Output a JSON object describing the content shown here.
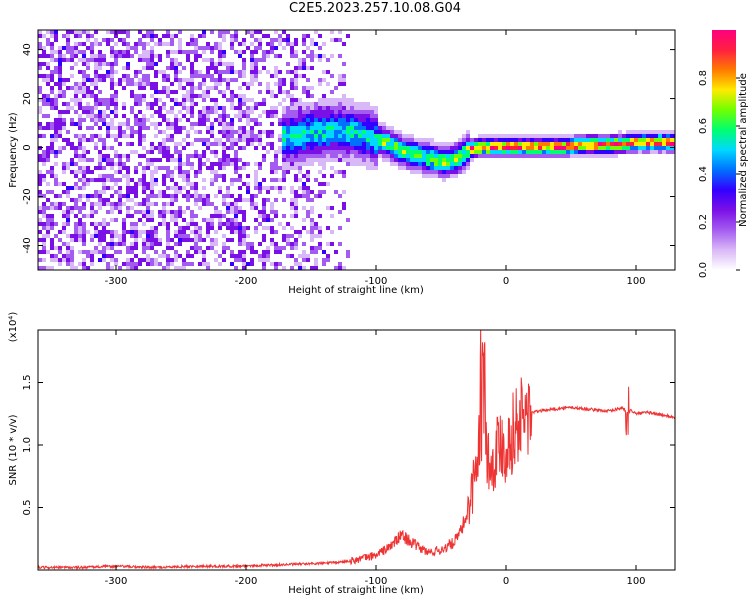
{
  "title": "C2E5.2023.257.10.08.G04",
  "chart_data": [
    {
      "type": "heatmap",
      "xlabel": "Height of straight line (km)",
      "ylabel": "Frequency (Hz)",
      "xlim": [
        -360,
        130
      ],
      "ylim": [
        -50,
        48
      ],
      "x_ticks": [
        -300,
        -200,
        -100,
        0,
        100
      ],
      "x_tick_labels": [
        "-300",
        "-200",
        "-100",
        "0",
        "100"
      ],
      "y_ticks": [
        -40,
        -20,
        0,
        20,
        40
      ],
      "y_tick_labels": [
        "-40",
        "-20",
        "0",
        "20",
        "40"
      ],
      "ridge": {
        "x": [
          -170,
          -150,
          -130,
          -110,
          -95,
          -80,
          -65,
          -50,
          -40,
          -30,
          -20,
          -10,
          0,
          20,
          40,
          60,
          80,
          100,
          130
        ],
        "frequency": [
          5,
          7,
          8,
          6,
          3,
          -1,
          -3,
          -5,
          -4,
          0,
          1,
          1,
          1,
          1,
          1,
          2,
          2,
          3,
          3
        ]
      },
      "colorbar": {
        "label": "Normalized spectral amplitude",
        "range": [
          0.0,
          1.0
        ],
        "ticks": [
          0.0,
          0.2,
          0.4,
          0.6,
          0.8
        ],
        "tick_labels": [
          "0.0",
          "0.2",
          "0.4",
          "0.6",
          "0.8"
        ]
      },
      "colormap": [
        "#ffffff",
        "#d9b8f7",
        "#a45cf0",
        "#7a10e6",
        "#3300ff",
        "#0070ff",
        "#00d8ff",
        "#00ff70",
        "#70ff00",
        "#ffea00",
        "#ff7a00",
        "#ff2040",
        "#ff0080"
      ],
      "grid": false
    },
    {
      "type": "line",
      "xlabel": "Height of straight line (km)",
      "ylabel": "SNR (10 * v/v)",
      "y_multiplier": "(x10⁴)",
      "xlim": [
        -360,
        130
      ],
      "ylim": [
        0,
        1.92
      ],
      "x_ticks": [
        -300,
        -200,
        -100,
        0,
        100
      ],
      "x_tick_labels": [
        "-300",
        "-200",
        "-100",
        "0",
        "100"
      ],
      "y_ticks": [
        0.5,
        1.0,
        1.5
      ],
      "y_tick_labels": [
        "0.5",
        "1.0",
        "1.5"
      ],
      "series": [
        {
          "color": "#ee3333",
          "x": [
            -360,
            -330,
            -300,
            -270,
            -240,
            -210,
            -180,
            -150,
            -130,
            -115,
            -100,
            -90,
            -80,
            -70,
            -60,
            -50,
            -40,
            -35,
            -30,
            -25,
            -22,
            -18,
            -15,
            -12,
            -8,
            -4,
            0,
            5,
            10,
            20,
            30,
            40,
            50,
            60,
            70,
            80,
            90,
            93,
            96,
            100,
            110,
            120,
            130
          ],
          "y": [
            0.02,
            0.02,
            0.03,
            0.02,
            0.03,
            0.03,
            0.04,
            0.05,
            0.06,
            0.08,
            0.12,
            0.18,
            0.28,
            0.2,
            0.14,
            0.16,
            0.22,
            0.3,
            0.45,
            0.7,
            0.9,
            1.2,
            1.0,
            0.8,
            0.95,
            1.05,
            0.95,
            1.1,
            1.2,
            1.26,
            1.28,
            1.29,
            1.3,
            1.29,
            1.28,
            1.27,
            1.3,
            1.25,
            1.28,
            1.25,
            1.26,
            1.24,
            1.22
          ]
        }
      ],
      "grid": false
    }
  ]
}
